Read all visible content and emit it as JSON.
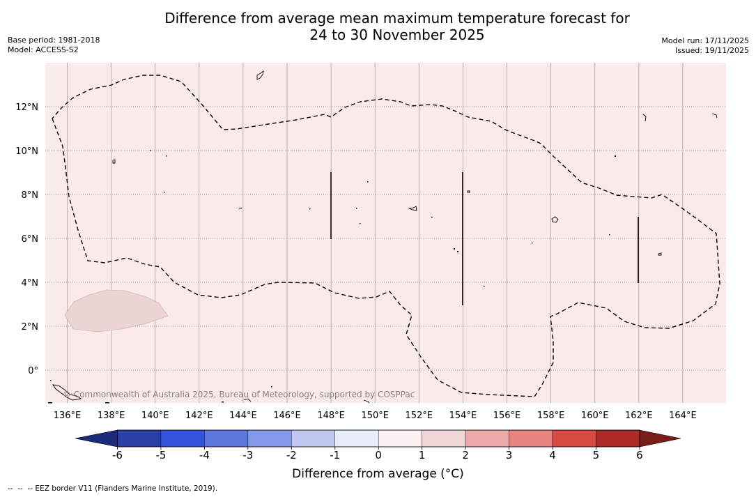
{
  "title": {
    "line1": "Difference from average mean maximum temperature forecast for",
    "line2": "24 to 30 November 2025"
  },
  "meta_left": {
    "base_period": "Base period: 1981-2018",
    "model": "Model: ACCESS-S2"
  },
  "meta_right": {
    "model_run": "Model run: 17/11/2025",
    "issued": "Issued: 19/11/2025"
  },
  "map": {
    "lon_ticks": [
      "136°E",
      "138°E",
      "140°E",
      "142°E",
      "144°E",
      "146°E",
      "148°E",
      "150°E",
      "152°E",
      "154°E",
      "156°E",
      "158°E",
      "160°E",
      "162°E",
      "164°E"
    ],
    "lat_ticks": [
      "12°N",
      "10°N",
      "8°N",
      "6°N",
      "4°N",
      "2°N",
      "0°"
    ],
    "background_color": "#fbeaea",
    "region_color": "#ead4d4",
    "copyright": "© Commonwealth of Australia 2025, Bureau of Meteorology, supported by COSPPac"
  },
  "colorbar": {
    "labels": [
      "-6",
      "-5",
      "-4",
      "-3",
      "-2",
      "-1",
      "0",
      "1",
      "2",
      "3",
      "4",
      "5",
      "6"
    ],
    "colors": [
      "#2a3ea8",
      "#3353db",
      "#5c76e0",
      "#8398e8",
      "#c0c8f2",
      "#e9ecfb",
      "#fdf0f0",
      "#eed6d6",
      "#eaa8a8",
      "#e6837e",
      "#d84a40",
      "#ab2c26"
    ],
    "under_color": "#1c2a7c",
    "over_color": "#7a1c18",
    "label": "Difference from average (°C)"
  },
  "footnote": "--  --  -- EEZ border V11 (Flanders Marine Institute, 2019)."
}
